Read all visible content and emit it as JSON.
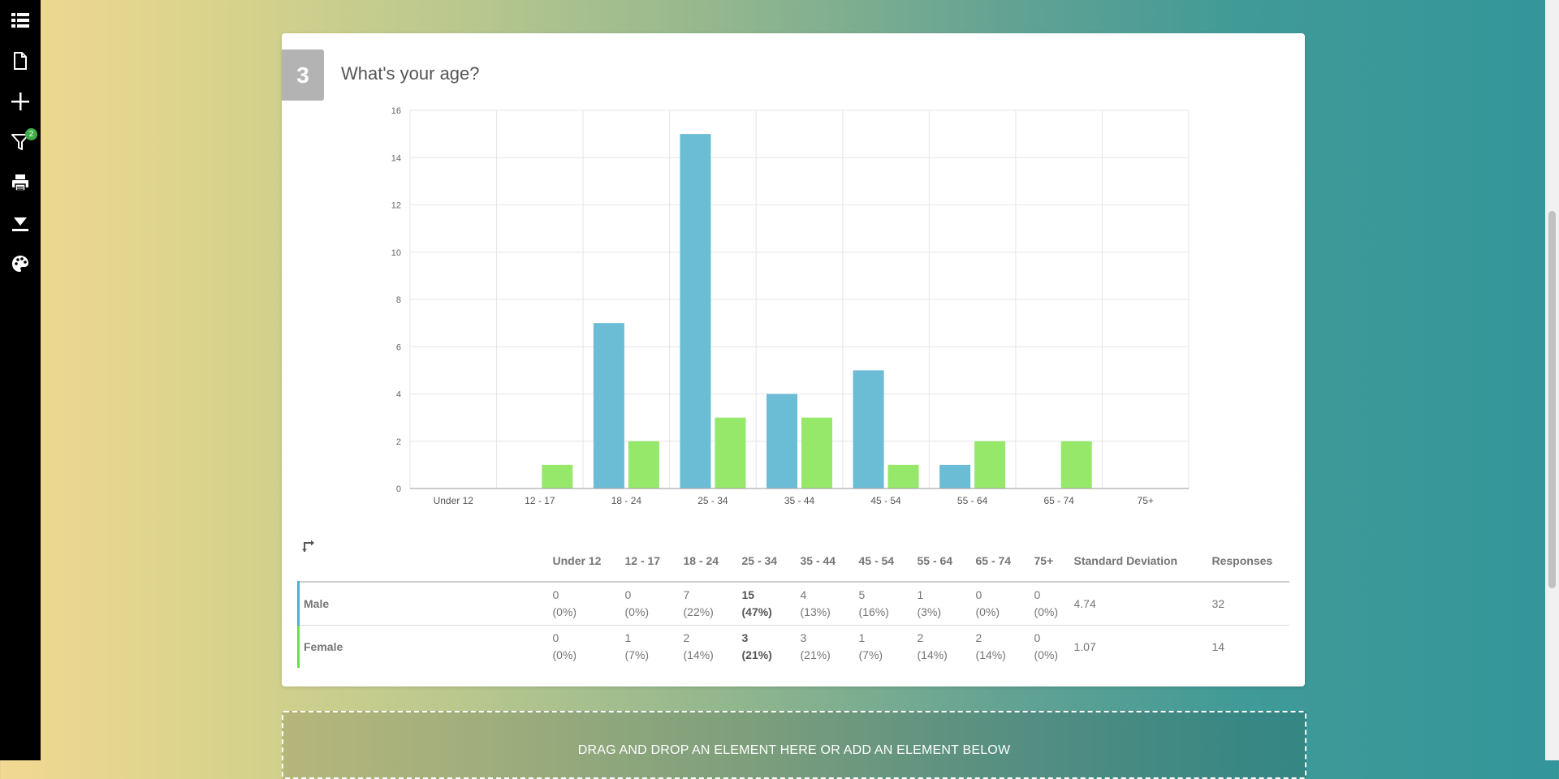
{
  "sidebar": {
    "items": [
      {
        "icon": "list-icon"
      },
      {
        "icon": "page-icon"
      },
      {
        "icon": "plus-icon"
      },
      {
        "icon": "filter-icon",
        "badge": "2"
      },
      {
        "icon": "print-icon"
      },
      {
        "icon": "download-icon"
      },
      {
        "icon": "palette-icon"
      }
    ]
  },
  "question": {
    "number": "3",
    "title": "What's your age?"
  },
  "chart_data": {
    "type": "bar",
    "categories": [
      "Under 12",
      "12 - 17",
      "18 - 24",
      "25 - 34",
      "35 - 44",
      "45 - 54",
      "55 - 64",
      "65 - 74",
      "75+"
    ],
    "series": [
      {
        "name": "Male",
        "color": "#6bbcd5",
        "values": [
          0,
          0,
          7,
          15,
          4,
          5,
          1,
          0,
          0
        ]
      },
      {
        "name": "Female",
        "color": "#95e86a",
        "values": [
          0,
          1,
          2,
          3,
          3,
          1,
          2,
          2,
          0
        ]
      }
    ],
    "ylim": [
      0,
      16
    ],
    "yticks": [
      0,
      2,
      4,
      6,
      8,
      10,
      12,
      14,
      16
    ],
    "grid": true
  },
  "table": {
    "headers": [
      "Under 12",
      "12 - 17",
      "18 - 24",
      "25 - 34",
      "35 - 44",
      "45 - 54",
      "55 - 64",
      "65 - 74",
      "75+",
      "Standard Deviation",
      "Responses"
    ],
    "rows": [
      {
        "label": "Male",
        "cells": [
          {
            "count": "0",
            "pct": "(0%)"
          },
          {
            "count": "0",
            "pct": "(0%)"
          },
          {
            "count": "7",
            "pct": "(22%)"
          },
          {
            "count": "15",
            "pct": "(47%)",
            "highlight": true
          },
          {
            "count": "4",
            "pct": "(13%)"
          },
          {
            "count": "5",
            "pct": "(16%)"
          },
          {
            "count": "1",
            "pct": "(3%)"
          },
          {
            "count": "0",
            "pct": "(0%)"
          },
          {
            "count": "0",
            "pct": "(0%)"
          }
        ],
        "std_dev": "4.74",
        "responses": "32"
      },
      {
        "label": "Female",
        "cells": [
          {
            "count": "0",
            "pct": "(0%)"
          },
          {
            "count": "1",
            "pct": "(7%)"
          },
          {
            "count": "2",
            "pct": "(14%)"
          },
          {
            "count": "3",
            "pct": "(21%)",
            "highlight": true
          },
          {
            "count": "3",
            "pct": "(21%)"
          },
          {
            "count": "1",
            "pct": "(7%)"
          },
          {
            "count": "2",
            "pct": "(14%)"
          },
          {
            "count": "2",
            "pct": "(14%)"
          },
          {
            "count": "0",
            "pct": "(0%)"
          }
        ],
        "std_dev": "1.07",
        "responses": "14"
      }
    ]
  },
  "dropzone": {
    "label": "DRAG AND DROP AN ELEMENT HERE OR ADD AN ELEMENT BELOW"
  }
}
